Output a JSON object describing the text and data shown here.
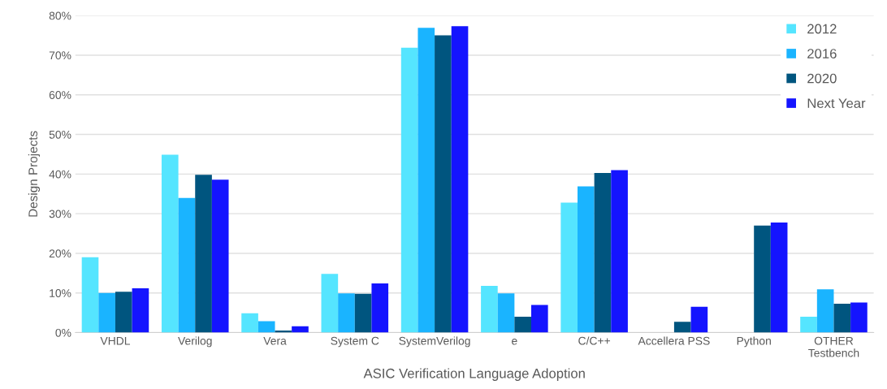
{
  "chart_data": {
    "type": "bar",
    "xlabel": "ASIC Verification Language Adoption",
    "ylabel": "Design Projects",
    "categories": [
      "VHDL",
      "Verilog",
      "Vera",
      "System C",
      "SystemVerilog",
      "e",
      "C/C++",
      "Accellera PSS",
      "Python",
      "OTHER\nTestbench"
    ],
    "series": [
      {
        "name": "2012",
        "color": "#55e5ff",
        "values": [
          19,
          44.9,
          4.9,
          14.8,
          71.9,
          11.8,
          32.8,
          null,
          null,
          4.0
        ]
      },
      {
        "name": "2016",
        "color": "#1ab4ff",
        "values": [
          10,
          34,
          2.9,
          9.9,
          76.9,
          9.9,
          36.9,
          null,
          null,
          10.9
        ]
      },
      {
        "name": "2020",
        "color": "#00557f",
        "values": [
          10.3,
          39.8,
          0.5,
          9.8,
          75.0,
          4.0,
          40.3,
          2.7,
          27.0,
          7.3
        ]
      },
      {
        "name": "Next Year",
        "color": "#1414ff",
        "values": [
          11.2,
          38.6,
          1.6,
          12.4,
          77.3,
          7.0,
          41.0,
          6.5,
          27.8,
          7.6
        ]
      }
    ],
    "ylim": [
      0,
      80
    ],
    "yticks": [
      {
        "value": 0,
        "label": "0%"
      },
      {
        "value": 10,
        "label": "10%"
      },
      {
        "value": 20,
        "label": "20%"
      },
      {
        "value": 30,
        "label": "30%"
      },
      {
        "value": 40,
        "label": "40%"
      },
      {
        "value": 50,
        "label": "50%"
      },
      {
        "value": 60,
        "label": "60%"
      },
      {
        "value": 70,
        "label": "70%"
      },
      {
        "value": 80,
        "label": "80%"
      }
    ],
    "grid": "y",
    "legend": "top right"
  }
}
